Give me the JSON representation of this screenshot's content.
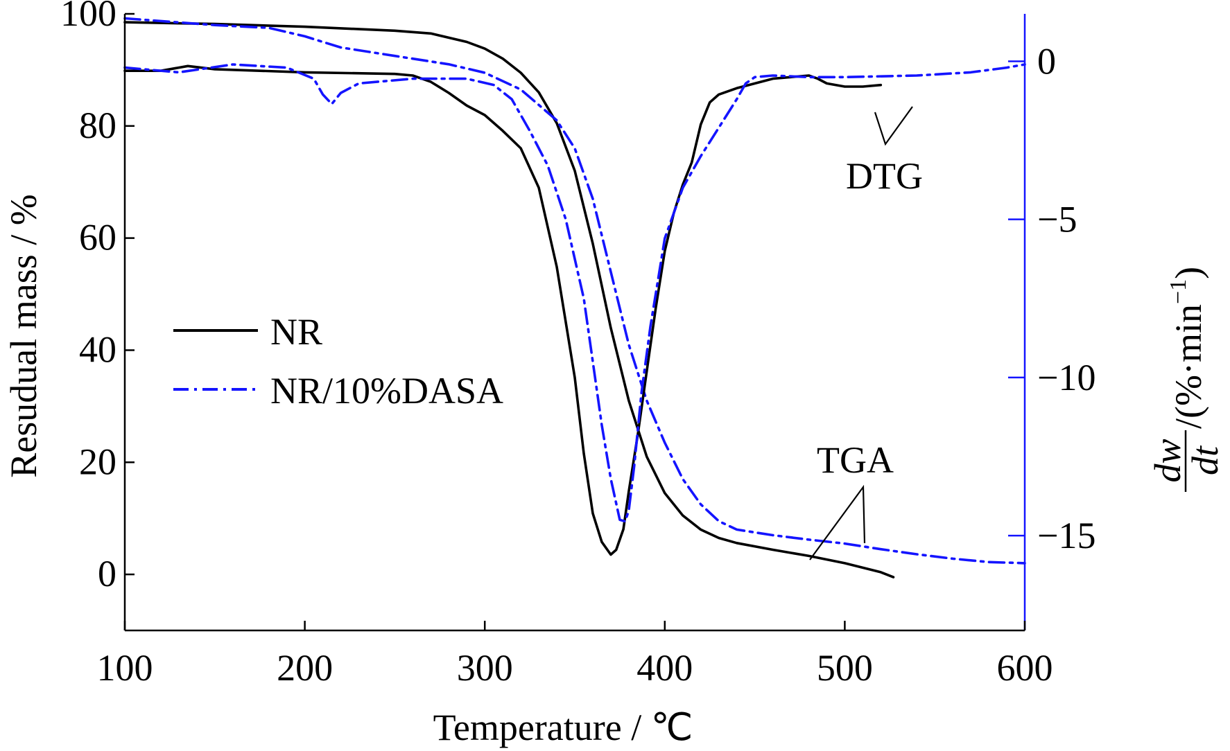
{
  "chart_data": {
    "type": "line",
    "x_axis": {
      "label": "Temperature / ℃",
      "range": [
        100,
        600
      ],
      "ticks": [
        100,
        200,
        300,
        400,
        500,
        600
      ]
    },
    "y_axis_left": {
      "label": "Resudual mass / %",
      "range": [
        -10,
        100
      ],
      "ticks": [
        0,
        20,
        40,
        60,
        80,
        100
      ]
    },
    "y_axis_right": {
      "label_main": "/(%·min",
      "label_sup": "−1",
      "label_close": ")",
      "fraction_numerator": "dw",
      "fraction_denominator": "dt",
      "range": [
        -18,
        1.5
      ],
      "ticks": [
        0,
        -5,
        -10,
        -15
      ],
      "tick_labels": [
        "0",
        "−5",
        "−10",
        "−15"
      ],
      "color": "#1414ff"
    },
    "legend": {
      "placement": "center-left",
      "entries": [
        {
          "label": "NR",
          "color": "#000000",
          "style": "solid"
        },
        {
          "label": "NR/10%DASA",
          "color": "#1414ff",
          "style": "dash-dot"
        }
      ]
    },
    "annotations": {
      "dtg": "DTG",
      "tga": "TGA"
    },
    "series": [
      {
        "name": "NR",
        "kind": "TGA",
        "axis": "left",
        "color": "#000000",
        "style": "solid",
        "x": [
          100,
          150,
          200,
          250,
          270,
          290,
          300,
          310,
          320,
          330,
          340,
          350,
          360,
          370,
          380,
          390,
          400,
          410,
          420,
          430,
          440,
          460,
          480,
          500,
          520,
          527
        ],
        "y": [
          98.5,
          98.2,
          97.7,
          97.0,
          96.5,
          95.0,
          93.8,
          92.0,
          89.5,
          86.0,
          80.5,
          72.0,
          59.0,
          44.0,
          31.0,
          21.0,
          14.5,
          10.5,
          8.0,
          6.5,
          5.6,
          4.4,
          3.3,
          2.0,
          0.4,
          -0.5
        ]
      },
      {
        "name": "NR/10%DASA",
        "kind": "TGA",
        "axis": "left",
        "color": "#1414ff",
        "style": "dash-dot",
        "x": [
          100,
          150,
          180,
          200,
          220,
          250,
          280,
          300,
          320,
          340,
          350,
          360,
          370,
          380,
          390,
          400,
          410,
          420,
          430,
          440,
          460,
          480,
          500,
          520,
          540,
          560,
          580,
          600
        ],
        "y": [
          99.2,
          98.0,
          97.5,
          96.0,
          94.0,
          92.5,
          91.0,
          89.5,
          86.5,
          81.0,
          76.0,
          67.0,
          54.0,
          41.0,
          31.0,
          23.5,
          17.0,
          12.5,
          9.5,
          8.0,
          7.0,
          6.2,
          5.5,
          4.5,
          3.6,
          2.8,
          2.2,
          2.0
        ]
      },
      {
        "name": "NR",
        "kind": "DTG",
        "axis": "right",
        "color": "#000000",
        "style": "solid",
        "x": [
          100,
          120,
          135,
          150,
          200,
          250,
          260,
          270,
          280,
          290,
          300,
          310,
          320,
          330,
          340,
          350,
          355,
          360,
          365,
          370,
          373,
          377,
          380,
          385,
          390,
          395,
          400,
          405,
          410,
          415,
          420,
          425,
          430,
          440,
          460,
          470,
          480,
          485,
          490,
          500,
          510,
          520
        ],
        "y": [
          -0.3,
          -0.3,
          -0.15,
          -0.25,
          -0.35,
          -0.4,
          -0.45,
          -0.65,
          -1.0,
          -1.4,
          -1.7,
          -2.2,
          -2.75,
          -4.0,
          -6.5,
          -10.0,
          -12.4,
          -14.3,
          -15.2,
          -15.6,
          -15.45,
          -14.8,
          -13.6,
          -11.8,
          -9.8,
          -7.8,
          -6.0,
          -4.8,
          -3.9,
          -3.2,
          -2.0,
          -1.3,
          -1.05,
          -0.85,
          -0.55,
          -0.5,
          -0.45,
          -0.55,
          -0.7,
          -0.8,
          -0.8,
          -0.75
        ]
      },
      {
        "name": "NR/10%DASA",
        "kind": "DTG",
        "axis": "right",
        "color": "#1414ff",
        "style": "dash-dot",
        "x": [
          100,
          130,
          160,
          190,
          205,
          210,
          215,
          220,
          230,
          260,
          290,
          305,
          315,
          325,
          335,
          345,
          355,
          360,
          365,
          370,
          375,
          378,
          380,
          383,
          387,
          392,
          400,
          410,
          420,
          430,
          440,
          445,
          450,
          460,
          480,
          500,
          540,
          570,
          590,
          600
        ],
        "y": [
          -0.2,
          -0.35,
          -0.1,
          -0.2,
          -0.55,
          -1.05,
          -1.35,
          -1.0,
          -0.7,
          -0.55,
          -0.55,
          -0.75,
          -1.2,
          -2.2,
          -3.3,
          -5.0,
          -7.5,
          -9.5,
          -11.5,
          -13.2,
          -14.5,
          -14.55,
          -14.2,
          -12.8,
          -10.5,
          -8.4,
          -5.6,
          -4.0,
          -3.0,
          -2.1,
          -1.2,
          -0.7,
          -0.5,
          -0.45,
          -0.5,
          -0.5,
          -0.45,
          -0.35,
          -0.2,
          -0.1
        ]
      }
    ]
  }
}
